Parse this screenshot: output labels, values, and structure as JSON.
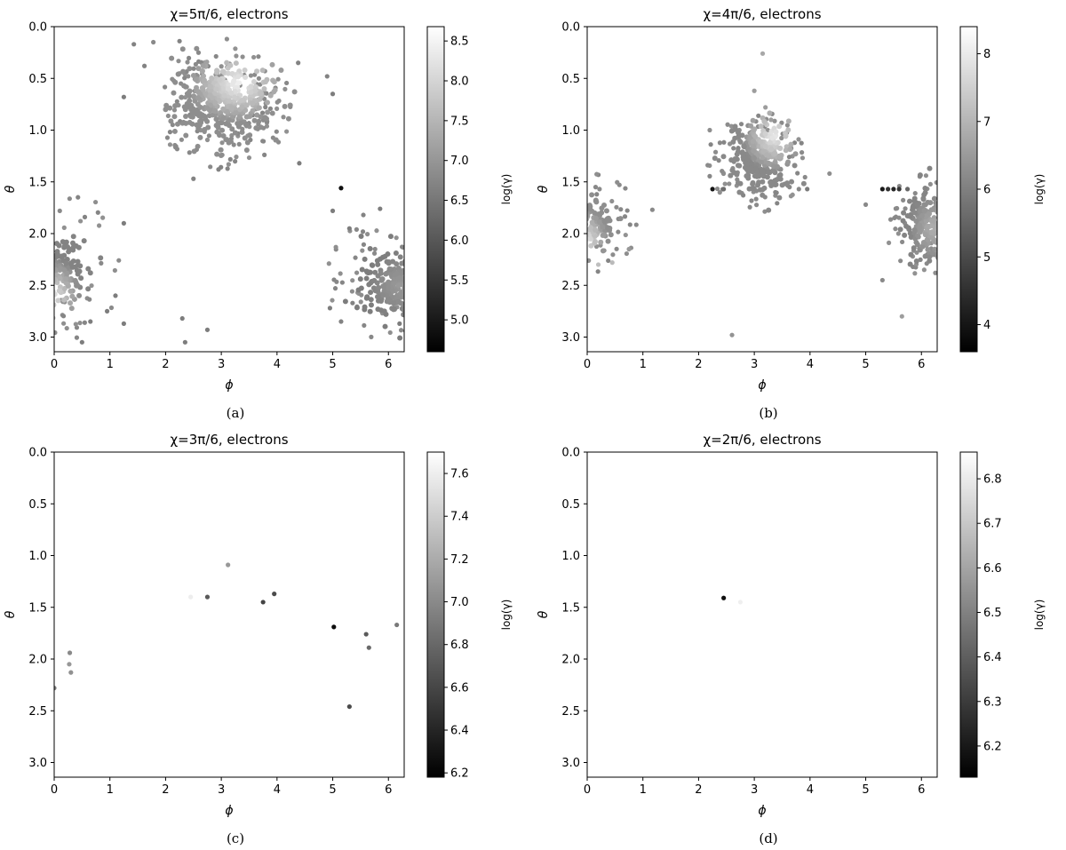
{
  "figure": {
    "colorbar_label": "log(γ)",
    "colormap": [
      "#000000",
      "#ffffff"
    ],
    "panels": [
      {
        "caption": "(a)"
      },
      {
        "caption": "(b)"
      },
      {
        "caption": "(c)"
      },
      {
        "caption": "(d)"
      }
    ]
  },
  "chart_data": [
    {
      "type": "scatter",
      "title": "χ=5π/6, electrons",
      "xlabel": "ϕ",
      "ylabel": "θ",
      "xlim": [
        0,
        6.283
      ],
      "ylim": [
        3.1416,
        0
      ],
      "xticks": [
        0,
        1,
        2,
        3,
        4,
        5,
        6
      ],
      "yticks": [
        0.0,
        0.5,
        1.0,
        1.5,
        2.0,
        2.5,
        3.0
      ],
      "colorbar": {
        "label": "log(γ)",
        "range": [
          4.6,
          8.68
        ],
        "ticks": [
          5.0,
          5.5,
          6.0,
          6.5,
          7.0,
          7.5,
          8.0,
          8.5
        ]
      },
      "clusters": [
        {
          "cx": 3.05,
          "cy": 0.72,
          "rx": 0.85,
          "ry": 0.35,
          "n": 420,
          "cmin": 6.9,
          "cmax": 8.6,
          "hx": 3.3,
          "hy": 0.55
        },
        {
          "cx": 0.12,
          "cy": 2.38,
          "rx": 0.45,
          "ry": 0.33,
          "n": 160,
          "cmin": 6.7,
          "cmax": 8.3,
          "hx": 0.0,
          "hy": 2.6
        },
        {
          "cx": 6.05,
          "cy": 2.5,
          "rx": 0.55,
          "ry": 0.3,
          "n": 220,
          "cmin": 6.6,
          "cmax": 7.1,
          "hx": 6.2,
          "hy": 2.5
        }
      ],
      "halo": [
        [
          3.05,
          0.78,
          0.95,
          0.46,
          150
        ],
        [
          0.3,
          2.3,
          0.75,
          0.55,
          40
        ],
        [
          5.85,
          2.45,
          0.75,
          0.45,
          60
        ]
      ],
      "points": [
        {
          "x": 1.43,
          "y": 0.17,
          "c": 6.7
        },
        {
          "x": 1.78,
          "y": 0.15,
          "c": 6.8
        },
        {
          "x": 2.25,
          "y": 0.14,
          "c": 6.7
        },
        {
          "x": 3.1,
          "y": 0.12,
          "c": 6.9
        },
        {
          "x": 1.25,
          "y": 0.68,
          "c": 6.6
        },
        {
          "x": 1.62,
          "y": 0.38,
          "c": 6.7
        },
        {
          "x": 4.38,
          "y": 0.35,
          "c": 6.7
        },
        {
          "x": 4.9,
          "y": 0.48,
          "c": 6.7
        },
        {
          "x": 5.0,
          "y": 0.65,
          "c": 6.6
        },
        {
          "x": 4.4,
          "y": 1.32,
          "c": 6.6
        },
        {
          "x": 2.5,
          "y": 1.47,
          "c": 6.7
        },
        {
          "x": 2.95,
          "y": 1.38,
          "c": 6.7
        },
        {
          "x": 5.15,
          "y": 1.56,
          "c": 4.7
        },
        {
          "x": 5.0,
          "y": 1.78,
          "c": 6.6
        },
        {
          "x": 5.3,
          "y": 1.95,
          "c": 6.6
        },
        {
          "x": 5.55,
          "y": 1.82,
          "c": 6.7
        },
        {
          "x": 5.85,
          "y": 1.76,
          "c": 6.6
        },
        {
          "x": 1.25,
          "y": 1.9,
          "c": 6.6
        },
        {
          "x": 0.55,
          "y": 1.84,
          "c": 6.7
        },
        {
          "x": 0.1,
          "y": 1.78,
          "c": 6.8
        },
        {
          "x": 1.1,
          "y": 2.6,
          "c": 6.6
        },
        {
          "x": 0.65,
          "y": 2.85,
          "c": 6.6
        },
        {
          "x": 0.95,
          "y": 2.75,
          "c": 6.6
        },
        {
          "x": 1.25,
          "y": 2.87,
          "c": 6.6
        },
        {
          "x": 0.5,
          "y": 3.05,
          "c": 6.6
        },
        {
          "x": 2.3,
          "y": 2.82,
          "c": 6.6
        },
        {
          "x": 2.75,
          "y": 2.93,
          "c": 6.6
        },
        {
          "x": 2.35,
          "y": 3.05,
          "c": 6.6
        },
        {
          "x": 4.95,
          "y": 2.72,
          "c": 6.6
        },
        {
          "x": 5.15,
          "y": 2.85,
          "c": 6.7
        },
        {
          "x": 6.2,
          "y": 2.87,
          "c": 6.6
        }
      ]
    },
    {
      "type": "scatter",
      "title": "χ=4π/6, electrons",
      "xlabel": "ϕ",
      "ylabel": "θ",
      "xlim": [
        0,
        6.283
      ],
      "ylim": [
        3.1416,
        0
      ],
      "xticks": [
        0,
        1,
        2,
        3,
        4,
        5,
        6
      ],
      "yticks": [
        0.0,
        0.5,
        1.0,
        1.5,
        2.0,
        2.5,
        3.0
      ],
      "colorbar": {
        "label": "log(γ)",
        "range": [
          3.6,
          8.4
        ],
        "ticks": [
          4,
          5,
          6,
          7,
          8
        ]
      },
      "clusters": [
        {
          "cx": 3.1,
          "cy": 1.25,
          "rx": 0.52,
          "ry": 0.32,
          "n": 300,
          "cmin": 6.2,
          "cmax": 8.2,
          "hx": 3.35,
          "hy": 1.05
        },
        {
          "cx": 0.12,
          "cy": 1.9,
          "rx": 0.32,
          "ry": 0.25,
          "n": 110,
          "cmin": 6.3,
          "cmax": 8.0,
          "hx": 0.0,
          "hy": 2.05
        },
        {
          "cx": 6.08,
          "cy": 1.92,
          "rx": 0.38,
          "ry": 0.3,
          "n": 170,
          "cmin": 6.1,
          "cmax": 7.0,
          "hx": 6.2,
          "hy": 1.95
        }
      ],
      "halo": [
        [
          3.05,
          1.3,
          0.7,
          0.38,
          90
        ],
        [
          0.3,
          1.9,
          0.45,
          0.38,
          40
        ],
        [
          5.95,
          1.9,
          0.45,
          0.38,
          50
        ]
      ],
      "points": [
        {
          "x": 3.15,
          "y": 0.26,
          "c": 6.8
        },
        {
          "x": 3.0,
          "y": 0.62,
          "c": 6.6
        },
        {
          "x": 3.2,
          "y": 0.78,
          "c": 6.6
        },
        {
          "x": 3.3,
          "y": 0.9,
          "c": 6.6
        },
        {
          "x": 2.2,
          "y": 1.0,
          "c": 6.3
        },
        {
          "x": 1.17,
          "y": 1.77,
          "c": 6.2
        },
        {
          "x": 2.25,
          "y": 1.57,
          "c": 3.8
        },
        {
          "x": 2.45,
          "y": 1.57,
          "c": 5.6
        },
        {
          "x": 3.8,
          "y": 1.57,
          "c": 6.2
        },
        {
          "x": 3.95,
          "y": 1.57,
          "c": 5.9
        },
        {
          "x": 4.35,
          "y": 1.42,
          "c": 6.3
        },
        {
          "x": 5.0,
          "y": 1.72,
          "c": 6.2
        },
        {
          "x": 5.3,
          "y": 1.57,
          "c": 3.9
        },
        {
          "x": 5.4,
          "y": 1.57,
          "c": 4.4
        },
        {
          "x": 5.5,
          "y": 1.57,
          "c": 4.2
        },
        {
          "x": 5.6,
          "y": 1.57,
          "c": 4.5
        },
        {
          "x": 5.75,
          "y": 1.57,
          "c": 5.5
        },
        {
          "x": 5.3,
          "y": 2.45,
          "c": 6.2
        },
        {
          "x": 5.65,
          "y": 2.8,
          "c": 6.6
        },
        {
          "x": 2.6,
          "y": 2.98,
          "c": 6.4
        },
        {
          "x": 0.75,
          "y": 2.15,
          "c": 6.5
        },
        {
          "x": 0.45,
          "y": 2.28,
          "c": 7.2
        },
        {
          "x": 0.2,
          "y": 2.3,
          "c": 7.3
        },
        {
          "x": 6.05,
          "y": 2.35,
          "c": 6.4
        },
        {
          "x": 6.25,
          "y": 2.38,
          "c": 6.3
        }
      ]
    },
    {
      "type": "scatter",
      "title": "χ=3π/6, electrons",
      "xlabel": "ϕ",
      "ylabel": "θ",
      "xlim": [
        0,
        6.283
      ],
      "ylim": [
        3.1416,
        0
      ],
      "xticks": [
        0,
        1,
        2,
        3,
        4,
        5,
        6
      ],
      "yticks": [
        0.0,
        0.5,
        1.0,
        1.5,
        2.0,
        2.5,
        3.0
      ],
      "colorbar": {
        "label": "log(γ)",
        "range": [
          6.18,
          7.7
        ],
        "ticks": [
          6.2,
          6.4,
          6.6,
          6.8,
          7.0,
          7.2,
          7.4,
          7.6
        ]
      },
      "clusters": [],
      "halo": [],
      "points": [
        {
          "x": 3.12,
          "y": 1.09,
          "c": 7.1
        },
        {
          "x": 2.45,
          "y": 1.4,
          "c": 7.65
        },
        {
          "x": 2.75,
          "y": 1.4,
          "c": 6.7
        },
        {
          "x": 3.75,
          "y": 1.45,
          "c": 6.55
        },
        {
          "x": 3.95,
          "y": 1.37,
          "c": 6.6
        },
        {
          "x": 5.02,
          "y": 1.69,
          "c": 6.2
        },
        {
          "x": 5.6,
          "y": 1.76,
          "c": 6.7
        },
        {
          "x": 5.65,
          "y": 1.89,
          "c": 6.8
        },
        {
          "x": 6.15,
          "y": 1.67,
          "c": 6.9
        },
        {
          "x": 0.28,
          "y": 1.94,
          "c": 7.0
        },
        {
          "x": 0.27,
          "y": 2.05,
          "c": 7.1
        },
        {
          "x": 0.3,
          "y": 2.13,
          "c": 7.05
        },
        {
          "x": 0.0,
          "y": 2.28,
          "c": 6.9
        },
        {
          "x": 5.3,
          "y": 2.46,
          "c": 6.6
        }
      ]
    },
    {
      "type": "scatter",
      "title": "χ=2π/6, electrons",
      "xlabel": "ϕ",
      "ylabel": "θ",
      "xlim": [
        0,
        6.283
      ],
      "ylim": [
        3.1416,
        0
      ],
      "xticks": [
        0,
        1,
        2,
        3,
        4,
        5,
        6
      ],
      "yticks": [
        0.0,
        0.5,
        1.0,
        1.5,
        2.0,
        2.5,
        3.0
      ],
      "colorbar": {
        "label": "log(γ)",
        "range": [
          6.13,
          6.86
        ],
        "ticks": [
          6.2,
          6.3,
          6.4,
          6.5,
          6.6,
          6.7,
          6.8
        ]
      },
      "clusters": [],
      "halo": [],
      "points": [
        {
          "x": 2.45,
          "y": 1.41,
          "c": 6.15
        },
        {
          "x": 2.75,
          "y": 1.45,
          "c": 6.84
        }
      ]
    }
  ]
}
